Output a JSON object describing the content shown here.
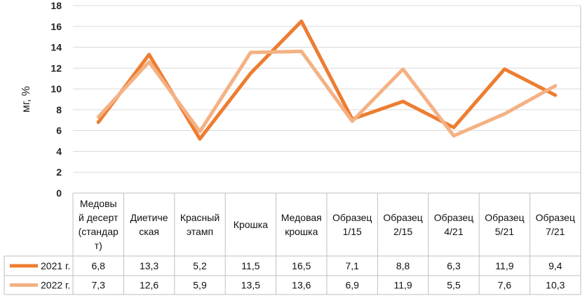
{
  "chart_data": {
    "type": "line",
    "ylabel": "мг, %",
    "ylim": [
      0,
      18
    ],
    "yticks": [
      0,
      2,
      4,
      6,
      8,
      10,
      12,
      14,
      16,
      18
    ],
    "grid": true,
    "legend": "data-table rows",
    "categories": [
      [
        "Медовы",
        "й десерт",
        "(стандар",
        "т)"
      ],
      [
        "Диетиче",
        "ская"
      ],
      [
        "Красный",
        "этамп"
      ],
      [
        "Крошка"
      ],
      [
        "Медовая",
        "крошка"
      ],
      [
        "Образец",
        "1/15"
      ],
      [
        "Образец",
        "2/15"
      ],
      [
        "Образец",
        "4/21"
      ],
      [
        "Образец",
        "5/21"
      ],
      [
        "Образец",
        "7/21"
      ]
    ],
    "series": [
      {
        "name": "2021 г.",
        "color": "#ED7D31",
        "values": [
          6.8,
          13.3,
          5.2,
          11.5,
          16.5,
          7.1,
          8.8,
          6.3,
          11.9,
          9.4
        ],
        "labels": [
          "6,8",
          "13,3",
          "5,2",
          "11,5",
          "16,5",
          "7,1",
          "8,8",
          "6,3",
          "11,9",
          "9,4"
        ]
      },
      {
        "name": "2022 г.",
        "color": "#F4B183",
        "values": [
          7.3,
          12.6,
          5.9,
          13.5,
          13.6,
          6.9,
          11.9,
          5.5,
          7.6,
          10.3
        ],
        "labels": [
          "7,3",
          "12,6",
          "5,9",
          "13,5",
          "13,6",
          "6,9",
          "11,9",
          "5,5",
          "7,6",
          "10,3"
        ]
      }
    ]
  }
}
